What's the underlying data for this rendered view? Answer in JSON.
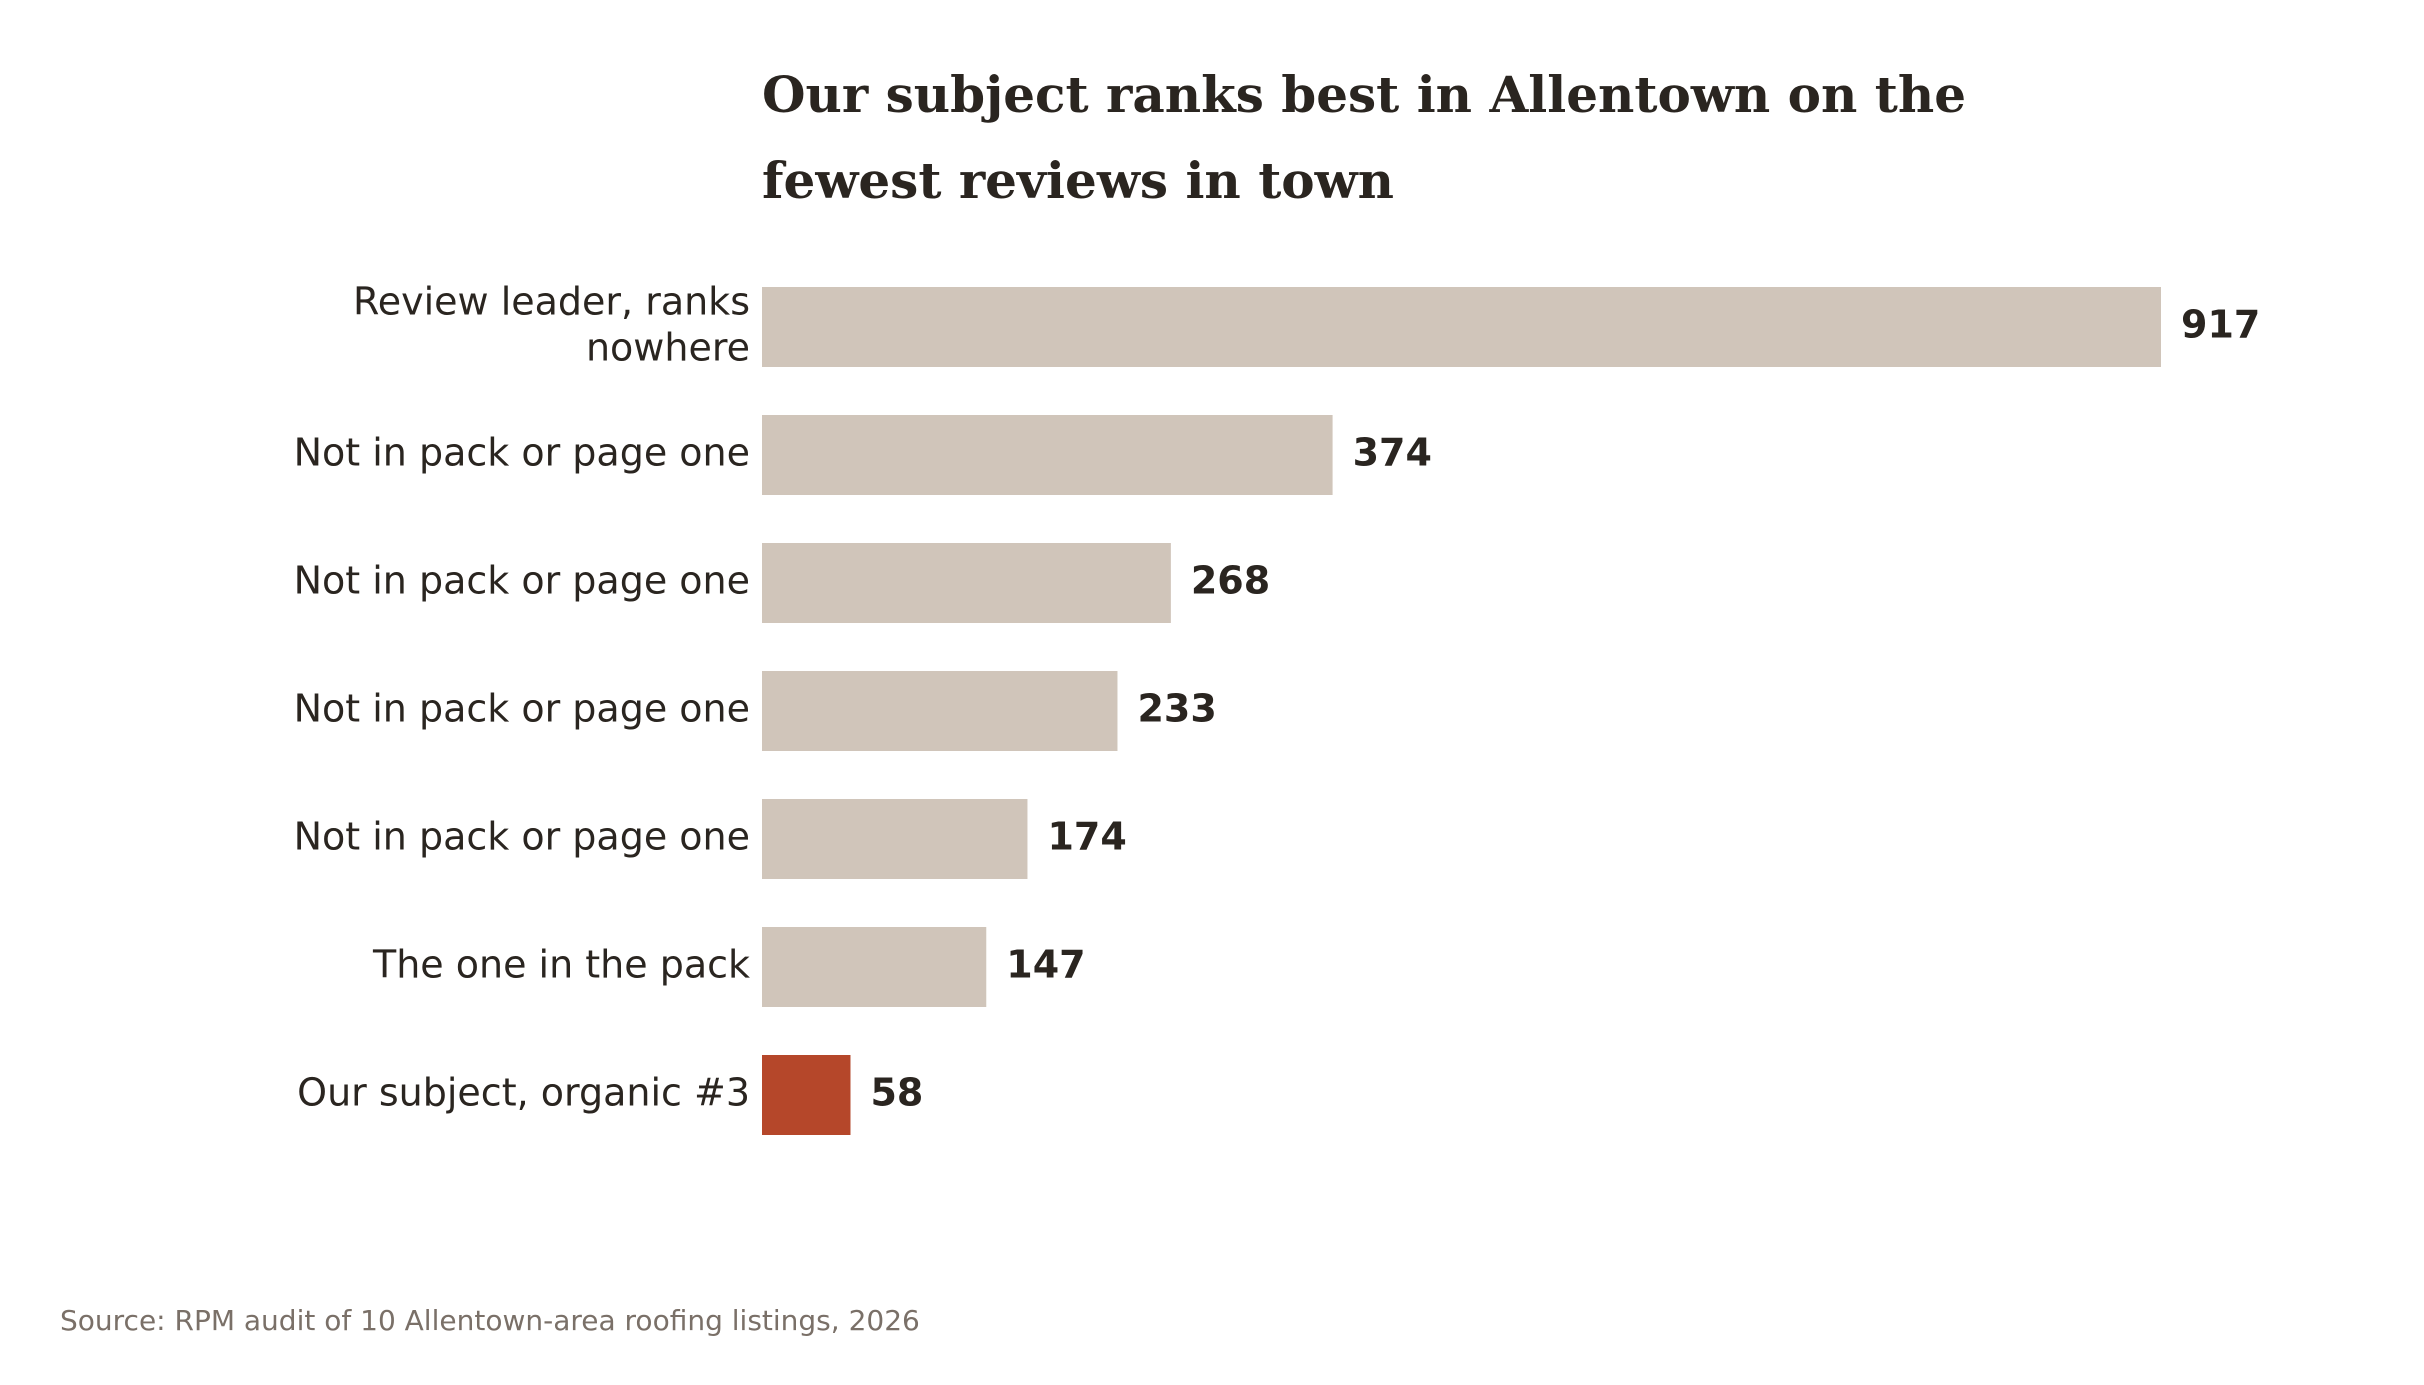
{
  "chart_data": {
    "type": "bar",
    "orientation": "horizontal",
    "title_lines": [
      "Our subject ranks best in Allentown on the",
      "fewest reviews in town"
    ],
    "categories": [
      [
        "Review leader, ranks",
        "nowhere"
      ],
      [
        "Not in pack or page one"
      ],
      [
        "Not in pack or page one"
      ],
      [
        "Not in pack or page one"
      ],
      [
        "Not in pack or page one"
      ],
      [
        "The one in the pack"
      ],
      [
        "Our subject, organic #3"
      ]
    ],
    "values": [
      917,
      374,
      268,
      233,
      174,
      147,
      58
    ],
    "highlight_index": 6,
    "xlim": [
      0,
      917
    ],
    "grid": false,
    "source": "Source: RPM audit of 10 Allentown-area roofing listings, 2026"
  },
  "colors": {
    "bar": "#d0c5ba",
    "highlight": "#b5472a",
    "text": "#2a2520",
    "muted": "#7a7068"
  }
}
